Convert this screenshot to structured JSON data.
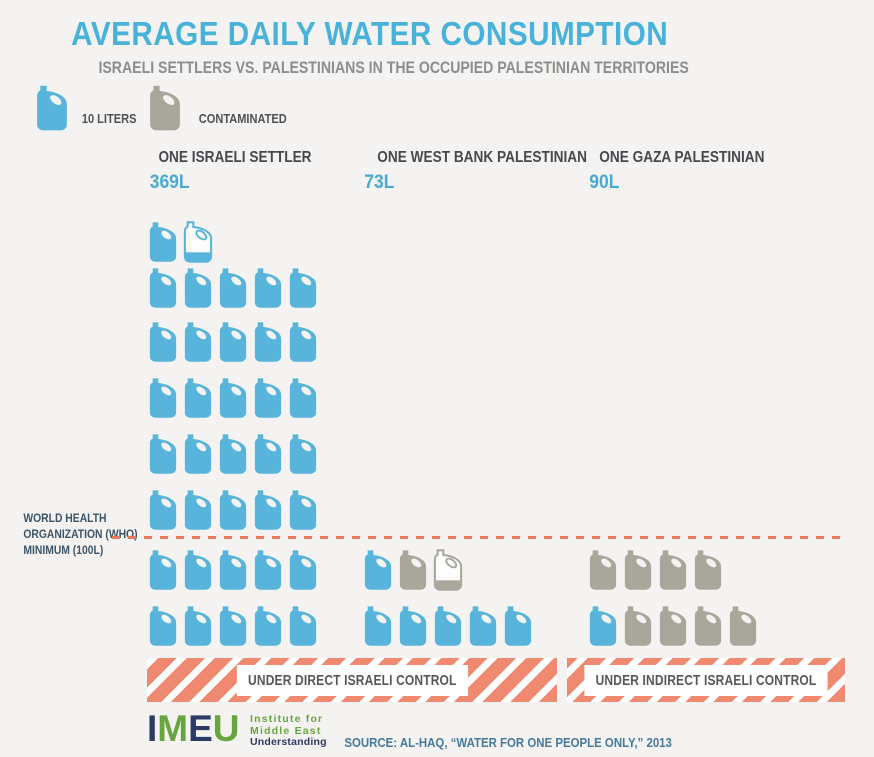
{
  "title": "AVERAGE DAILY WATER CONSUMPTION",
  "subtitle": "ISRAELI SETTLERS VS. PALESTINIANS IN THE OCCUPIED PALESTINIAN TERRITORIES",
  "legend": {
    "items": [
      {
        "type": "blue",
        "label": "10 LITERS"
      },
      {
        "type": "gray",
        "label": "CONTAMINATED"
      }
    ]
  },
  "colors": {
    "background": "#f4f3f1",
    "title_blue": "#49b2da",
    "subtitle_gray": "#8d8d8d",
    "heading_dark": "#45494e",
    "jug_blue": "#58b4da",
    "jug_gray": "#a9a79b",
    "who_navy": "#3d5468",
    "dash_coral": "#e87a5c",
    "banner_salmon": "#ef8a71",
    "banner_text": "#54585c",
    "source_blue": "#47799f",
    "logo_navy": "#2d3a66",
    "logo_green": "#67a63e"
  },
  "columns": [
    {
      "name": "ONE ISRAELI SETTLER",
      "value": "369L",
      "rows_above": [
        [
          "blue",
          "blue-partial"
        ],
        [
          "blue",
          "blue",
          "blue",
          "blue",
          "blue"
        ],
        [
          "blue",
          "blue",
          "blue",
          "blue",
          "blue"
        ],
        [
          "blue",
          "blue",
          "blue",
          "blue",
          "blue"
        ],
        [
          "blue",
          "blue",
          "blue",
          "blue",
          "blue"
        ],
        [
          "blue",
          "blue",
          "blue",
          "blue",
          "blue"
        ]
      ],
      "rows_below": [
        [
          "blue",
          "blue",
          "blue",
          "blue",
          "blue"
        ],
        [
          "blue",
          "blue",
          "blue",
          "blue",
          "blue"
        ]
      ]
    },
    {
      "name": "ONE WEST BANK PALESTINIAN",
      "value": "73L",
      "rows_above": [],
      "rows_below": [
        [
          "blue",
          "gray",
          "gray-partial"
        ],
        [
          "blue",
          "blue",
          "blue",
          "blue",
          "blue"
        ]
      ]
    },
    {
      "name": "ONE GAZA PALESTINIAN",
      "value": "90L",
      "rows_above": [],
      "rows_below": [
        [
          "gray",
          "gray",
          "gray",
          "gray"
        ],
        [
          "blue",
          "gray",
          "gray",
          "gray",
          "gray"
        ]
      ]
    }
  ],
  "who_line": {
    "lines": [
      "WORLD HEALTH",
      "ORGANIZATION (WHO)",
      "MINIMUM (100L)"
    ]
  },
  "banners": [
    {
      "label": "UNDER DIRECT ISRAELI CONTROL"
    },
    {
      "label": "UNDER INDIRECT ISRAELI CONTROL"
    }
  ],
  "logo": {
    "letters": [
      "I",
      "M",
      "E",
      "U"
    ],
    "tagline": [
      "Institute for",
      "Middle East",
      "Understanding"
    ]
  },
  "source": "SOURCE: AL-HAQ, “WATER FOR ONE PEOPLE ONLY,” 2013",
  "chart_data": {
    "type": "pictogram",
    "title": "AVERAGE DAILY WATER CONSUMPTION",
    "subtitle": "ISRAELI SETTLERS VS. PALESTINIANS IN THE OCCUPIED PALESTINIAN TERRITORIES",
    "unit_liters_per_icon": 10,
    "categories": [
      "ONE ISRAELI SETTLER",
      "ONE WEST BANK PALESTINIAN",
      "ONE GAZA PALESTINIAN"
    ],
    "values_liters": [
      369,
      73,
      90
    ],
    "series": [
      {
        "name": "Clean water (liters)",
        "values": [
          369,
          60,
          10
        ]
      },
      {
        "name": "Contaminated water (liters)",
        "values": [
          0,
          13,
          80
        ]
      }
    ],
    "icon_counts": [
      {
        "blue_full": 36,
        "blue_partial": 1,
        "gray_full": 0,
        "gray_partial": 0
      },
      {
        "blue_full": 6,
        "blue_partial": 0,
        "gray_full": 1,
        "gray_partial": 1
      },
      {
        "blue_full": 1,
        "blue_partial": 0,
        "gray_full": 8,
        "gray_partial": 0
      }
    ],
    "reference_line": {
      "label": "WORLD HEALTH ORGANIZATION (WHO) MINIMUM (100L)",
      "value_liters": 100
    },
    "groups": [
      {
        "label": "UNDER DIRECT ISRAELI CONTROL",
        "category_indexes": [
          0,
          1
        ]
      },
      {
        "label": "UNDER INDIRECT ISRAELI CONTROL",
        "category_indexes": [
          2
        ]
      }
    ],
    "source": "SOURCE: AL-HAQ, “WATER FOR ONE PEOPLE ONLY,” 2013"
  }
}
